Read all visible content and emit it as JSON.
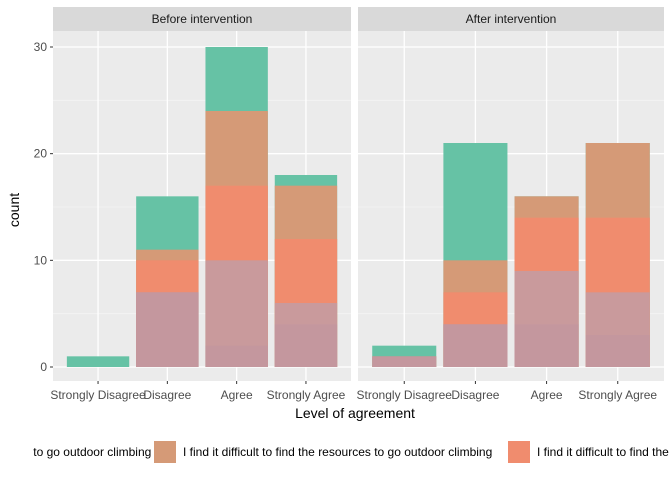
{
  "chart_data": {
    "type": "bar",
    "stacking": "overlapping (identity), semi-transparent fill",
    "panels": [
      {
        "title": "Before intervention"
      },
      {
        "title": "After intervention"
      }
    ],
    "categories": [
      "Strongly Disagree",
      "Disagree",
      "Agree",
      "Strongly Agree"
    ],
    "xlabel": "Level of agreement",
    "ylabel": "count",
    "ylim": [
      0,
      32
    ],
    "yticks": [
      0,
      10,
      20,
      30
    ],
    "grid": true,
    "legend_position": "bottom",
    "series": [
      {
        "name": "... to go outdoor climbing with",
        "color": "#66C2A5",
        "values_before": [
          1,
          16,
          30,
          18
        ],
        "values_after": [
          2,
          21,
          16,
          21
        ]
      },
      {
        "name": "I find it difficult to find the resources to go outdoor climbing",
        "color": "#D59A77",
        "values_before": [
          0,
          11,
          24,
          17
        ],
        "values_after": [
          1,
          10,
          16,
          21
        ]
      },
      {
        "name": "I find it difficult to find the ...",
        "color": "#F08C6E",
        "values_before": [
          0,
          10,
          17,
          12
        ],
        "values_after": [
          0,
          7,
          14,
          14
        ]
      },
      {
        "name": "",
        "color": "#C99A9C",
        "values_before": [
          0,
          7,
          10,
          6
        ],
        "values_after": [
          0,
          4,
          9,
          7
        ]
      },
      {
        "name": "",
        "color": "#C4979E",
        "values_before": [
          0,
          7,
          2,
          4
        ],
        "values_after": [
          1,
          4,
          4,
          3
        ]
      }
    ],
    "legend_labels": [
      "to go outdoor climbing with",
      "I find it difficult to find the resources to go outdoor climbing",
      "I find it difficult to find the"
    ],
    "legend_colors": [
      "#66C2A5",
      "#D59A77",
      "#F08C6E"
    ]
  }
}
